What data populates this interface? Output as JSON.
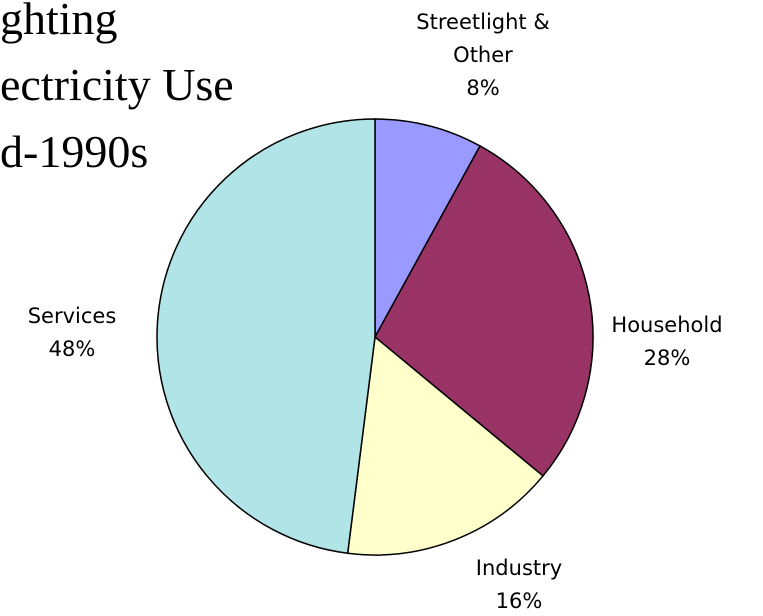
{
  "chart_data": {
    "type": "pie",
    "title_lines": [
      "ghting",
      "ectricity Use",
      "d-1990s"
    ],
    "categories": [
      "Streetlight & Other",
      "Household",
      "Industry",
      "Services"
    ],
    "values": [
      8,
      28,
      16,
      48
    ],
    "value_labels": [
      "8%",
      "28%",
      "16%",
      "48%"
    ],
    "colors": [
      "#9999ff",
      "#993366",
      "#ffffcc",
      "#b0e4e6"
    ]
  }
}
